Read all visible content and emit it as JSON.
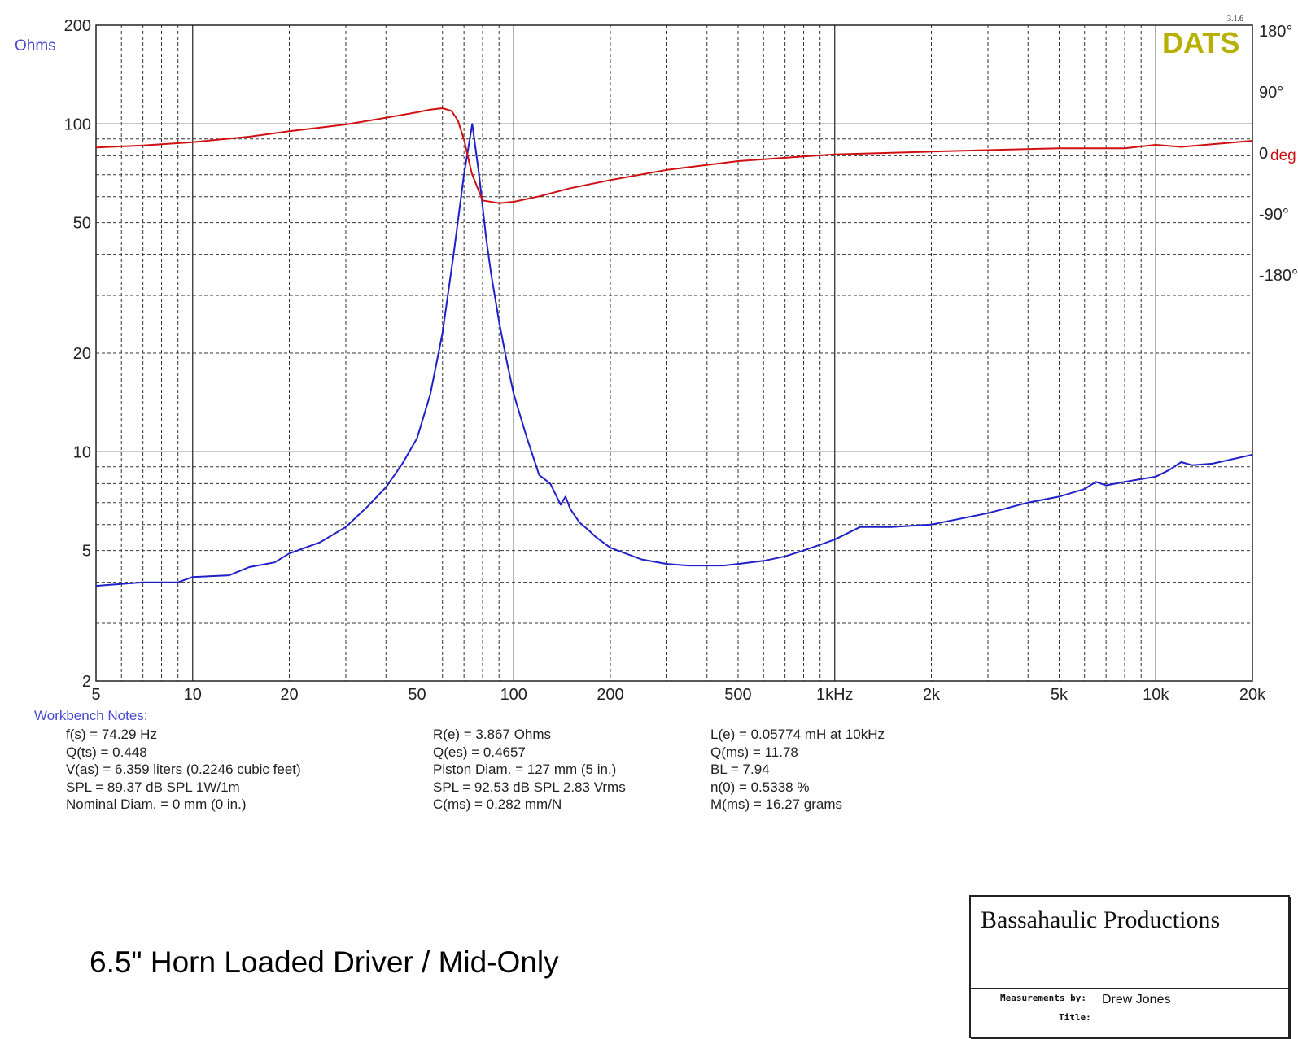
{
  "chart_data": {
    "type": "line",
    "x_scale": "log",
    "y_scale": "log",
    "xlim": [
      5,
      20000
    ],
    "ylim": [
      2,
      200
    ],
    "y2lim": [
      -180,
      180
    ],
    "grid": true,
    "yaxis_title": "Ohms",
    "y2axis_unit": "deg",
    "x_ticks": [
      {
        "v": 5,
        "label": "5"
      },
      {
        "v": 10,
        "label": "10"
      },
      {
        "v": 20,
        "label": "20"
      },
      {
        "v": 50,
        "label": "50"
      },
      {
        "v": 100,
        "label": "100"
      },
      {
        "v": 200,
        "label": "200"
      },
      {
        "v": 500,
        "label": "500"
      },
      {
        "v": 1000,
        "label": "1kHz"
      },
      {
        "v": 2000,
        "label": "2k"
      },
      {
        "v": 5000,
        "label": "5k"
      },
      {
        "v": 10000,
        "label": "10k"
      },
      {
        "v": 20000,
        "label": "20k"
      }
    ],
    "y_ticks": [
      {
        "v": 200,
        "label": "200"
      },
      {
        "v": 100,
        "label": "100"
      },
      {
        "v": 50,
        "label": "50"
      },
      {
        "v": 20,
        "label": "20"
      },
      {
        "v": 10,
        "label": "10"
      },
      {
        "v": 5,
        "label": "5"
      },
      {
        "v": 2,
        "label": "2"
      }
    ],
    "y2_ticks": [
      {
        "v": 180,
        "label": "180°"
      },
      {
        "v": 90,
        "label": "90°"
      },
      {
        "v": 0,
        "label": "0"
      },
      {
        "v": -90,
        "label": "-90°"
      },
      {
        "v": -180,
        "label": "-180°"
      }
    ],
    "series": [
      {
        "color": "#2020c8",
        "axis": "left",
        "x": [
          5,
          7,
          9,
          10,
          13,
          15,
          18,
          20,
          25,
          30,
          35,
          40,
          45,
          50,
          55,
          60,
          65,
          70,
          74.29,
          78,
          82,
          85,
          90,
          95,
          100,
          110,
          120,
          130,
          140,
          145,
          150,
          160,
          170,
          180,
          200,
          250,
          300,
          350,
          400,
          450,
          500,
          600,
          700,
          800,
          1000,
          1200,
          1500,
          2000,
          3000,
          4000,
          5000,
          6000,
          6500,
          7000,
          8000,
          10000,
          11000,
          12000,
          13000,
          15000,
          20000
        ],
        "y": [
          3.9,
          4.0,
          4.0,
          4.15,
          4.2,
          4.45,
          4.6,
          4.9,
          5.3,
          5.9,
          6.8,
          7.8,
          9.2,
          11.0,
          15.0,
          23.0,
          40.0,
          70.0,
          100.0,
          70.0,
          45.0,
          35.0,
          25.0,
          19.0,
          15.0,
          11.0,
          8.5,
          8.0,
          6.9,
          7.3,
          6.7,
          6.1,
          5.8,
          5.5,
          5.1,
          4.7,
          4.55,
          4.5,
          4.5,
          4.5,
          4.55,
          4.65,
          4.8,
          5.0,
          5.4,
          5.9,
          5.9,
          6.0,
          6.5,
          7.0,
          7.3,
          7.7,
          8.1,
          7.9,
          8.1,
          8.4,
          8.8,
          9.3,
          9.1,
          9.2,
          9.8
        ]
      },
      {
        "color": "#d01010",
        "axis": "right",
        "x": [
          5,
          7,
          10,
          15,
          20,
          30,
          40,
          50,
          55,
          60,
          64,
          67,
          70,
          74,
          80,
          90,
          100,
          120,
          150,
          200,
          300,
          500,
          800,
          1000,
          2000,
          5000,
          8000,
          10000,
          12000,
          15000,
          20000
        ],
        "y": [
          8,
          11,
          16,
          24,
          32,
          42,
          52,
          60,
          64,
          66,
          62,
          48,
          20,
          -30,
          -70,
          -74,
          -72,
          -64,
          -52,
          -40,
          -25,
          -12,
          -5,
          -2,
          2,
          7,
          7,
          12,
          9,
          13,
          18
        ]
      }
    ]
  },
  "badges": {
    "brand": "DATS",
    "version": "3.1.6"
  },
  "notes": {
    "heading": "Workbench Notes:",
    "col1": [
      "f(s) = 74.29 Hz",
      "Q(ts) = 0.448",
      "V(as) = 6.359 liters  (0.2246 cubic feet)",
      "SPL = 89.37 dB SPL 1W/1m",
      "Nominal Diam. = 0 mm (0 in.)"
    ],
    "col2": [
      "R(e) = 3.867 Ohms",
      "Q(es) = 0.4657",
      "Piston Diam. = 127 mm (5 in.)",
      "SPL = 92.53 dB SPL 2.83 Vrms",
      "C(ms) = 0.282 mm/N"
    ],
    "col3": [
      "L(e) = 0.05774 mH at 10kHz",
      "Q(ms) = 11.78",
      "BL = 7.94",
      "n(0) = 0.5338 %",
      "M(ms) = 16.27 grams"
    ]
  },
  "caption": "6.5\" Horn Loaded Driver / Mid-Only",
  "titlebox": {
    "company": "Bassahaulic Productions",
    "measurements_label": "Measurements by:",
    "measurements_value": "Drew Jones",
    "title_label": "Title:"
  },
  "colors": {
    "impedance": "#2020c8",
    "phase": "#d01010",
    "brand": "#b8b000",
    "axis_title": "#4a4ad0"
  }
}
